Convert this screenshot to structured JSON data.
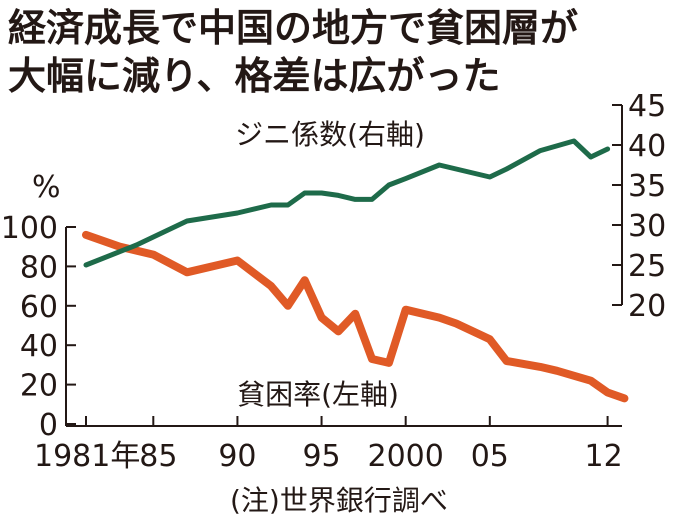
{
  "headline": {
    "line1": "経済成長で中国の地方で貧困層が",
    "line2": "大幅に減り、格差は広がった"
  },
  "colors": {
    "gini": "#1e6b4a",
    "poverty": "#e05a26",
    "axis": "#231815"
  },
  "chart_data": {
    "type": "line",
    "left_axis_unit": "%",
    "left_ticks": [
      0,
      20,
      40,
      60,
      80,
      100
    ],
    "left_ylim": [
      0,
      100
    ],
    "right_ticks": [
      20,
      25,
      30,
      35,
      40,
      45
    ],
    "right_ylim": [
      20,
      45
    ],
    "x_ticks": [
      {
        "x": 1981,
        "label": "1981年"
      },
      {
        "x": 1985,
        "label": "85"
      },
      {
        "x": 1990,
        "label": "90"
      },
      {
        "x": 1995,
        "label": "95"
      },
      {
        "x": 2000,
        "label": "2000"
      },
      {
        "x": 2005,
        "label": "05"
      },
      {
        "x": 2012,
        "label": "12"
      }
    ],
    "xlim": [
      1981,
      2012.5
    ],
    "series": [
      {
        "name": "貧困率(左軸)",
        "axis": "left",
        "color": "#e05a26",
        "points": [
          [
            1981,
            96
          ],
          [
            1983,
            90
          ],
          [
            1985,
            86
          ],
          [
            1987,
            77
          ],
          [
            1990,
            83
          ],
          [
            1992,
            70
          ],
          [
            1993,
            60
          ],
          [
            1994,
            73
          ],
          [
            1995,
            54
          ],
          [
            1996,
            47
          ],
          [
            1997,
            56
          ],
          [
            1998,
            33
          ],
          [
            1999,
            31
          ],
          [
            2000,
            58
          ],
          [
            2002,
            54
          ],
          [
            2003,
            51
          ],
          [
            2005,
            43
          ],
          [
            2006,
            32
          ],
          [
            2008,
            29
          ],
          [
            2009,
            27
          ],
          [
            2011,
            22
          ],
          [
            2012,
            16
          ],
          [
            2013,
            13
          ]
        ]
      },
      {
        "name": "ジニ係数(右軸)",
        "axis": "right",
        "color": "#1e6b4a",
        "points": [
          [
            1981,
            25
          ],
          [
            1984,
            27.5
          ],
          [
            1985,
            28.5
          ],
          [
            1987,
            30.5
          ],
          [
            1990,
            31.5
          ],
          [
            1992,
            32.5
          ],
          [
            1993,
            32.5
          ],
          [
            1994,
            34
          ],
          [
            1995,
            34
          ],
          [
            1996,
            33.7
          ],
          [
            1997,
            33.2
          ],
          [
            1998,
            33.2
          ],
          [
            1999,
            35
          ],
          [
            2000,
            35.8
          ],
          [
            2002,
            37.5
          ],
          [
            2005,
            36
          ],
          [
            2006,
            37
          ],
          [
            2008,
            39.3
          ],
          [
            2010,
            40.5
          ],
          [
            2011,
            38.5
          ],
          [
            2012,
            39.5
          ]
        ]
      }
    ]
  },
  "footnote": "(注)世界銀行調べ"
}
